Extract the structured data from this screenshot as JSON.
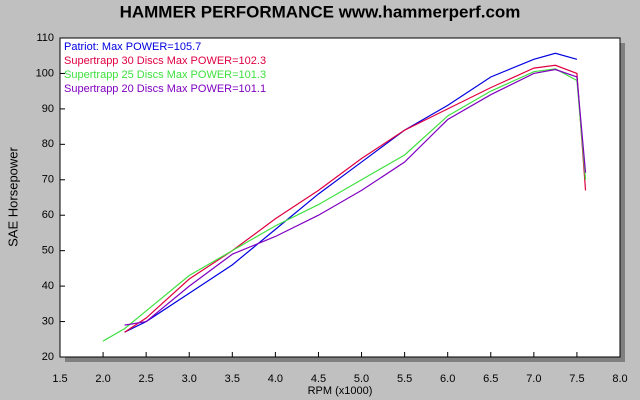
{
  "chart_data": {
    "type": "line",
    "title": "HAMMER PERFORMANCE www.hammerperf.com",
    "x_label": "RPM (x1000)",
    "y_label": "SAE Horsepower",
    "x": [
      2.0,
      2.25,
      2.5,
      3.0,
      3.5,
      4.0,
      4.5,
      5.0,
      5.5,
      6.0,
      6.5,
      7.0,
      7.25,
      7.5,
      7.6
    ],
    "series": [
      {
        "name": "Patriot: Max POWER=105.7",
        "color": "#0000e0",
        "values": [
          null,
          27,
          30,
          38,
          46,
          56,
          66,
          75,
          84,
          91,
          99,
          104,
          105.7,
          104,
          null
        ]
      },
      {
        "name": "Supertrapp 30 Discs  Max POWER=102.3",
        "color": "#e00040",
        "values": [
          null,
          27,
          31,
          42,
          50,
          59,
          67,
          76,
          84,
          90,
          96,
          101.5,
          102.3,
          100,
          67
        ]
      },
      {
        "name": "Supertrapp 25 Discs  Max POWER=101.3",
        "color": "#40e040",
        "values": [
          24.5,
          28,
          33,
          43,
          50,
          57,
          63,
          70,
          77,
          88,
          95,
          100.5,
          101.3,
          98,
          70
        ]
      },
      {
        "name": "Supertrapp 20 Discs  Max POWER=101.1",
        "color": "#8000c0",
        "values": [
          null,
          29,
          30,
          40,
          49,
          54,
          60,
          67,
          75,
          87,
          94,
          100,
          101.1,
          99,
          72
        ]
      }
    ],
    "xlim": [
      1.5,
      8.0
    ],
    "xticks": [
      1.5,
      {
        "value": 2,
        "label": "2.0"
      },
      2.5,
      {
        "value": 3,
        "label": "3.0"
      },
      3.5,
      {
        "value": 4,
        "label": "4.0"
      },
      4.5,
      {
        "value": 5,
        "label": "5.0"
      },
      5.5,
      {
        "value": 6,
        "label": "6.0"
      },
      6.5,
      {
        "value": 7,
        "label": "7.0"
      },
      7.5,
      {
        "value": 8,
        "label": "8.0"
      }
    ],
    "ylim": [
      20,
      110
    ],
    "yticks": [
      20,
      30,
      40,
      50,
      60,
      70,
      80,
      90,
      100,
      110
    ],
    "grid": false
  }
}
